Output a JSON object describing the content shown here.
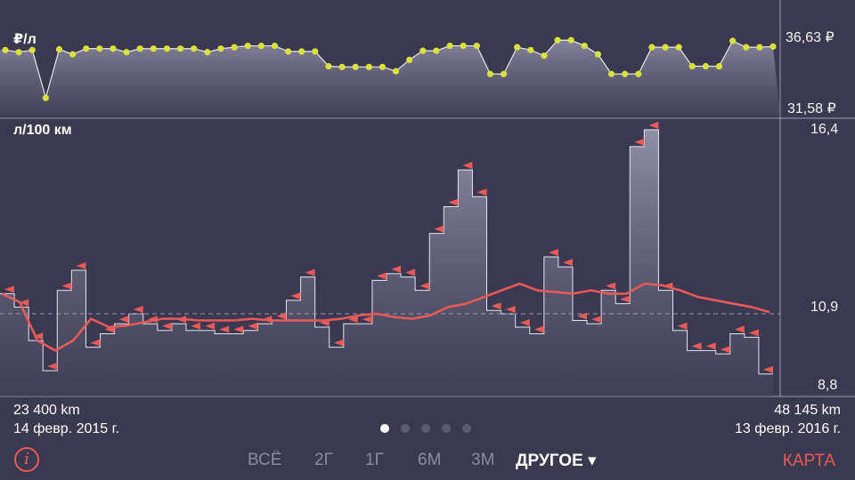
{
  "price_panel": {
    "title": "₽/л",
    "y_max_label": "36,63 ₽",
    "y_min_label": "31,58 ₽"
  },
  "consumption_panel": {
    "title": "л/100 км",
    "y_max_label": "16,4",
    "y_mid_label": "10,9",
    "y_min_label": "8,8"
  },
  "footer": {
    "start_km": "23 400 km",
    "start_date": "14 февр. 2015 г.",
    "end_km": "48 145 km",
    "end_date": "13 февр. 2016 г."
  },
  "pager": {
    "count": 5,
    "active": 0
  },
  "toolbar": {
    "info_label": "i",
    "tabs": [
      {
        "label": "ВСЁ"
      },
      {
        "label": "2Г"
      },
      {
        "label": "1Г"
      },
      {
        "label": "6М"
      },
      {
        "label": "3М"
      },
      {
        "label": "ДРУГОЕ ▾"
      }
    ],
    "selected_tab": 5,
    "map_label": "КАРТА"
  },
  "colors": {
    "background": "#3a3950",
    "price_dot": "#d8e23a",
    "average_line": "#e85a5a",
    "flag": "#e85a5a",
    "accent": "#e85a5a"
  },
  "chart_data": [
    {
      "type": "line",
      "ylabel": "₽/л",
      "ylim": [
        31.58,
        36.63
      ],
      "values": [
        35.6,
        35.45,
        35.6,
        32.2,
        35.65,
        35.3,
        35.7,
        35.7,
        35.7,
        35.45,
        35.7,
        35.7,
        35.7,
        35.7,
        35.7,
        35.45,
        35.7,
        35.8,
        35.9,
        35.9,
        35.9,
        35.5,
        35.5,
        35.5,
        34.45,
        34.4,
        34.4,
        34.4,
        34.4,
        34.1,
        34.9,
        35.55,
        35.55,
        35.9,
        35.9,
        35.9,
        33.9,
        33.9,
        35.8,
        35.6,
        35.2,
        36.3,
        36.3,
        35.9,
        35.3,
        33.9,
        33.9,
        33.9,
        35.8,
        35.8,
        35.8,
        34.45,
        34.45,
        34.45,
        36.25,
        35.8,
        35.8,
        35.85
      ]
    },
    {
      "type": "area",
      "ylabel": "л/100 км",
      "ylim": [
        8.8,
        16.4
      ],
      "values": [
        11.5,
        11.1,
        10.1,
        9.2,
        11.6,
        12.2,
        9.9,
        10.3,
        10.6,
        10.9,
        10.6,
        10.4,
        10.6,
        10.4,
        10.4,
        10.3,
        10.3,
        10.4,
        10.6,
        10.7,
        11.3,
        12.0,
        10.5,
        9.9,
        10.6,
        10.6,
        11.9,
        12.1,
        12.0,
        11.6,
        13.3,
        14.1,
        15.2,
        14.4,
        11.0,
        10.9,
        10.5,
        10.3,
        12.6,
        12.3,
        10.7,
        10.6,
        11.6,
        11.2,
        15.9,
        16.4,
        11.6,
        10.4,
        9.8,
        9.8,
        9.7,
        10.3,
        10.2,
        9.1
      ],
      "average": [
        11.5,
        11.25,
        10.1,
        9.8,
        10.1,
        10.75,
        10.5,
        10.55,
        10.65,
        10.75,
        10.75,
        10.7,
        10.7,
        10.7,
        10.75,
        10.7,
        10.7,
        10.7,
        10.7,
        10.75,
        10.85,
        10.9,
        10.8,
        10.75,
        10.85,
        11.1,
        11.2,
        11.4,
        11.6,
        11.8,
        11.6,
        11.55,
        11.5,
        11.6,
        11.5,
        11.5,
        11.8,
        11.75,
        11.6,
        11.4,
        11.3,
        11.2,
        11.1,
        10.95
      ],
      "reference_value": 10.9
    }
  ]
}
